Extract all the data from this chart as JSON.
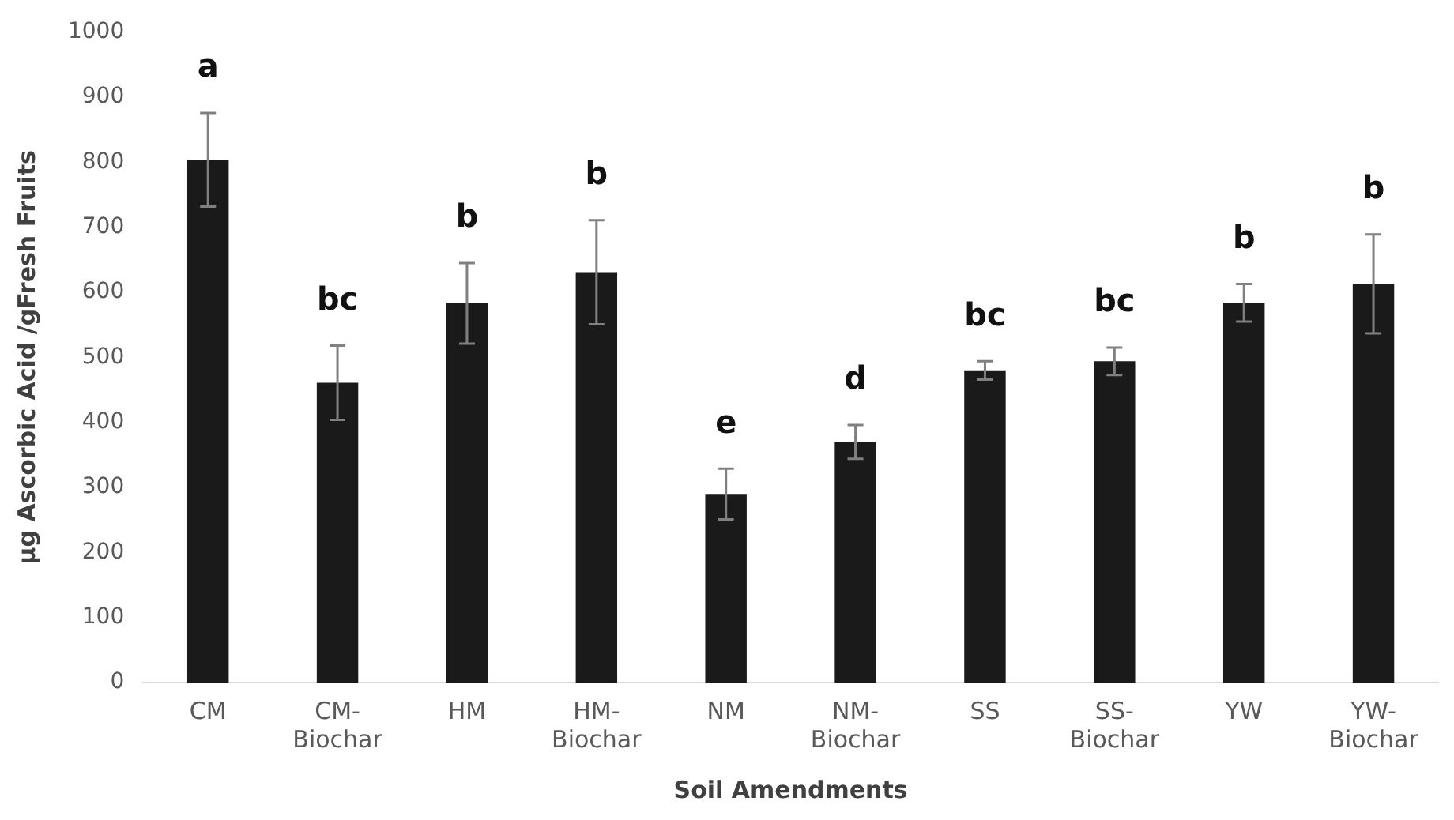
{
  "chart_data": {
    "type": "bar",
    "xlabel": "Soil Amendments",
    "ylabel": "µg Ascorbic Acid /gFresh Fruits",
    "categories": [
      "CM",
      "CM-Biochar",
      "HM",
      "HM-Biochar",
      "NM",
      "NM-Biochar",
      "SS",
      "SS-Biochar",
      "YW",
      "YW-Biochar"
    ],
    "values": [
      804,
      461,
      583,
      631,
      290,
      370,
      480,
      494,
      584,
      613
    ],
    "errors": [
      72,
      57,
      62,
      80,
      39,
      26,
      14,
      21,
      29,
      76
    ],
    "color": "#1a1a1a",
    "ylim": [
      0,
      1000
    ],
    "yticks": [
      0,
      100,
      200,
      300,
      400,
      500,
      600,
      700,
      800,
      900,
      1000
    ],
    "grid": false,
    "legend": false,
    "value_labels": [
      "a",
      "bc",
      "b",
      "b",
      "e",
      "d",
      "bc",
      "bc",
      "b",
      "b"
    ]
  }
}
